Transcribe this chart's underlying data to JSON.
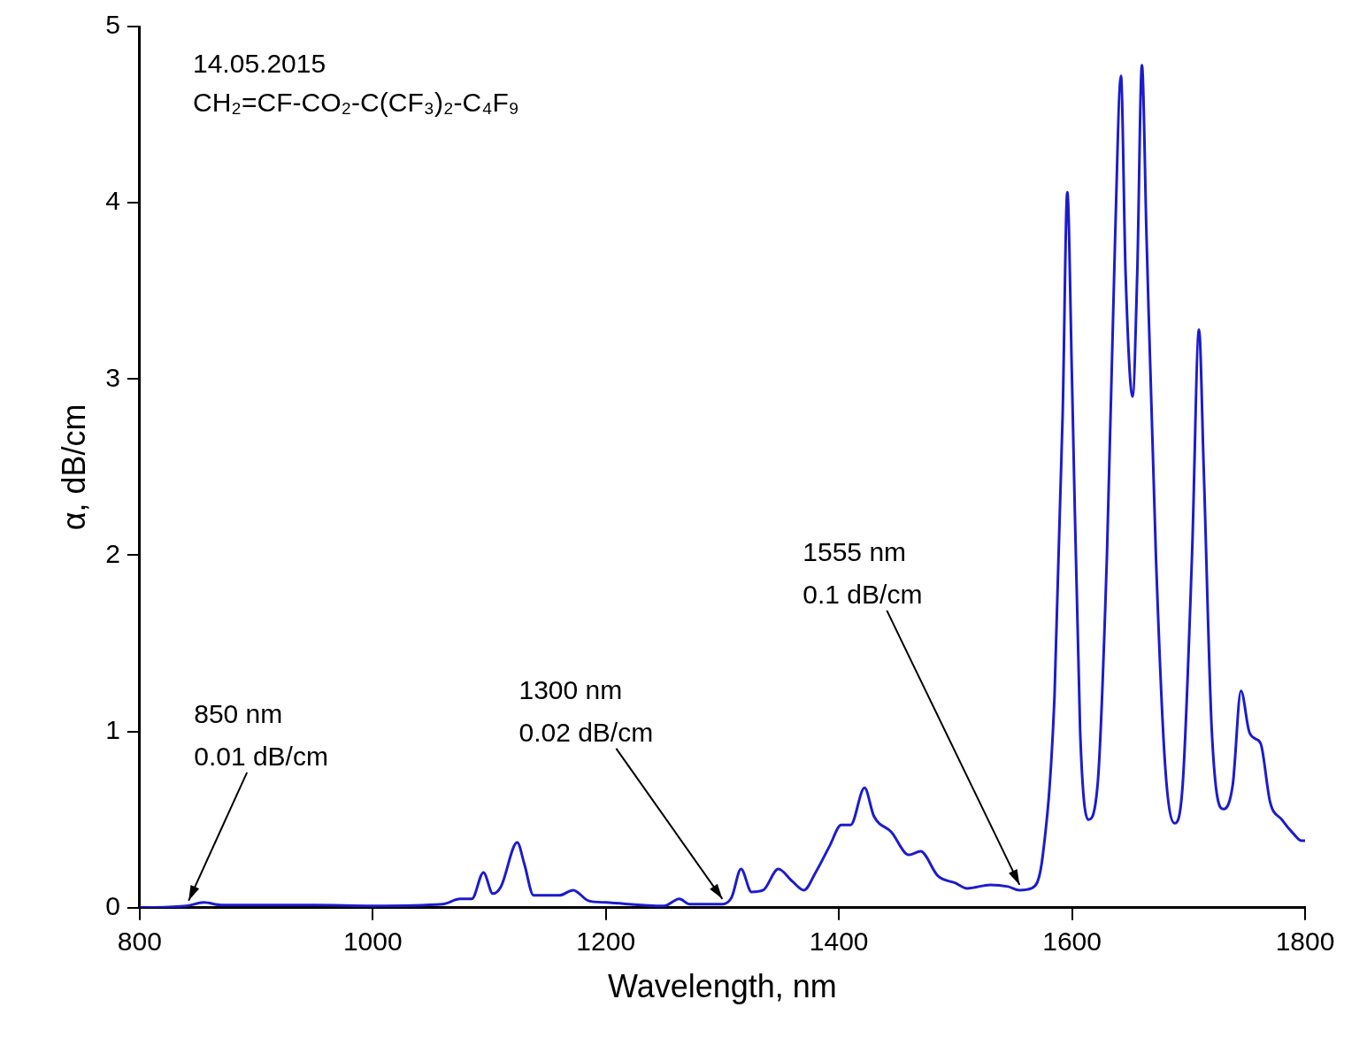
{
  "chart_data": {
    "type": "line",
    "xlabel": "Wavelength, nm",
    "ylabel": "α, dB/cm",
    "xlim": [
      800,
      1800
    ],
    "xticks": [
      800,
      1000,
      1200,
      1400,
      1600,
      1800
    ],
    "ylim": [
      0,
      5
    ],
    "yticks": [
      0,
      1,
      2,
      3,
      4,
      5
    ],
    "grid": false,
    "legend": false,
    "marker": "none",
    "line_style": "solid",
    "annotations": [
      "14.05.2015",
      "CH₂=CF-CO₂-C(CF₃)₂-C₄F₉",
      {
        "text": "850 nm\n0.01 dB/cm",
        "x": 842,
        "y": 0.01
      },
      {
        "text": "1300 nm\n0.02 dB/cm",
        "x": 1300,
        "y": 0.02
      },
      {
        "text": "1555 nm\n0.1 dB/cm",
        "x": 1555,
        "y": 0.1
      }
    ],
    "series": [
      {
        "color": "#1c1ccc",
        "x": [
          800,
          840,
          855,
          870,
          950,
          1000,
          1060,
          1075,
          1085,
          1095,
          1103,
          1110,
          1124,
          1130,
          1138,
          1160,
          1172,
          1185,
          1200,
          1250,
          1263,
          1272,
          1300,
          1308,
          1316,
          1325,
          1335,
          1348,
          1360,
          1370,
          1380,
          1392,
          1402,
          1410,
          1422,
          1430,
          1445,
          1460,
          1470,
          1485,
          1500,
          1510,
          1530,
          1545,
          1555,
          1565,
          1575,
          1585,
          1592,
          1596,
          1600,
          1607,
          1614,
          1622,
          1630,
          1637,
          1642,
          1646,
          1652,
          1656,
          1660,
          1664,
          1672,
          1680,
          1688,
          1695,
          1703,
          1709,
          1713,
          1720,
          1730,
          1738,
          1745,
          1752,
          1757,
          1762,
          1770,
          1780,
          1790,
          1797,
          1800
        ],
        "values": [
          0.0,
          0.01,
          0.03,
          0.015,
          0.015,
          0.01,
          0.02,
          0.05,
          0.05,
          0.2,
          0.08,
          0.12,
          0.37,
          0.25,
          0.07,
          0.07,
          0.1,
          0.04,
          0.03,
          0.01,
          0.05,
          0.02,
          0.02,
          0.06,
          0.22,
          0.09,
          0.1,
          0.22,
          0.15,
          0.1,
          0.2,
          0.35,
          0.47,
          0.47,
          0.68,
          0.52,
          0.43,
          0.3,
          0.32,
          0.18,
          0.14,
          0.11,
          0.13,
          0.12,
          0.1,
          0.11,
          0.3,
          1.2,
          2.8,
          4.06,
          3.0,
          1.0,
          0.5,
          0.7,
          2.0,
          3.8,
          4.72,
          3.6,
          2.9,
          3.6,
          4.78,
          3.8,
          2.0,
          0.8,
          0.48,
          0.7,
          2.0,
          3.28,
          2.5,
          1.0,
          0.56,
          0.7,
          1.23,
          1.0,
          0.96,
          0.93,
          0.6,
          0.5,
          0.42,
          0.38,
          0.38
        ]
      }
    ]
  }
}
